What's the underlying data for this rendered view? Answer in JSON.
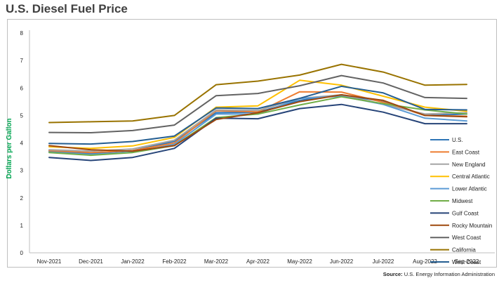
{
  "title": "U.S. Diesel Fuel Price",
  "source": {
    "label": "Source:",
    "text": "U.S. Energy Information Administration"
  },
  "chart_data": {
    "type": "line",
    "title": "U.S. Diesel Fuel Price",
    "xlabel": "",
    "ylabel": "Dollars per Gallon",
    "ylim": [
      0,
      8
    ],
    "yticks": [
      0,
      1,
      2,
      3,
      4,
      5,
      6,
      7,
      8
    ],
    "grid": false,
    "legend_position": "right",
    "categories": [
      "Nov-2021",
      "Dec-2021",
      "Jan-2022",
      "Feb-2022",
      "Mar-2022",
      "Apr-2022",
      "May-2022",
      "Jun-2022",
      "Jul-2022",
      "Aug-2022",
      "Sep-2022"
    ],
    "series": [
      {
        "name": "U.S.",
        "color": "#2e75b6",
        "values": [
          3.7,
          3.62,
          3.72,
          4.06,
          5.1,
          5.12,
          5.55,
          5.75,
          5.5,
          5.0,
          5.05
        ]
      },
      {
        "name": "East Coast",
        "color": "#ed7d31",
        "values": [
          3.72,
          3.65,
          3.72,
          4.0,
          5.17,
          5.13,
          5.86,
          5.85,
          5.48,
          5.0,
          4.97
        ]
      },
      {
        "name": "New England",
        "color": "#a5a5a5",
        "values": [
          3.75,
          3.7,
          3.78,
          4.1,
          5.2,
          5.18,
          5.62,
          5.75,
          5.4,
          5.05,
          5.1
        ]
      },
      {
        "name": "Central Atlantic",
        "color": "#ffc000",
        "values": [
          3.86,
          3.8,
          3.89,
          4.2,
          5.3,
          5.35,
          6.28,
          6.1,
          5.7,
          5.3,
          5.15
        ]
      },
      {
        "name": "Lower Atlantic",
        "color": "#5b9bd5",
        "values": [
          3.66,
          3.58,
          3.66,
          3.95,
          5.05,
          5.05,
          5.62,
          5.7,
          5.4,
          4.9,
          4.8
        ]
      },
      {
        "name": "Midwest",
        "color": "#70ad47",
        "values": [
          3.65,
          3.55,
          3.65,
          3.9,
          4.92,
          5.05,
          5.38,
          5.68,
          5.43,
          5.2,
          5.05
        ]
      },
      {
        "name": "Gulf Coast",
        "color": "#264478",
        "values": [
          3.47,
          3.36,
          3.47,
          3.8,
          4.9,
          4.88,
          5.25,
          5.4,
          5.12,
          4.7,
          4.7
        ]
      },
      {
        "name": "Rocky Mountain",
        "color": "#9e480e",
        "values": [
          3.9,
          3.75,
          3.7,
          3.9,
          4.85,
          5.1,
          5.5,
          5.75,
          5.55,
          5.0,
          4.95
        ]
      },
      {
        "name": "West Coast",
        "color": "#636363",
        "values": [
          4.38,
          4.37,
          4.45,
          4.65,
          5.72,
          5.8,
          6.08,
          6.45,
          6.18,
          5.65,
          5.62
        ]
      },
      {
        "name": "California",
        "color": "#997300",
        "values": [
          4.74,
          4.77,
          4.8,
          5.0,
          6.12,
          6.25,
          6.47,
          6.86,
          6.58,
          6.1,
          6.13
        ]
      },
      {
        "name": "West Coast",
        "color": "#255e91",
        "values": [
          3.98,
          3.96,
          4.05,
          4.25,
          5.27,
          5.25,
          5.62,
          6.06,
          5.82,
          5.22,
          5.2
        ]
      }
    ]
  }
}
